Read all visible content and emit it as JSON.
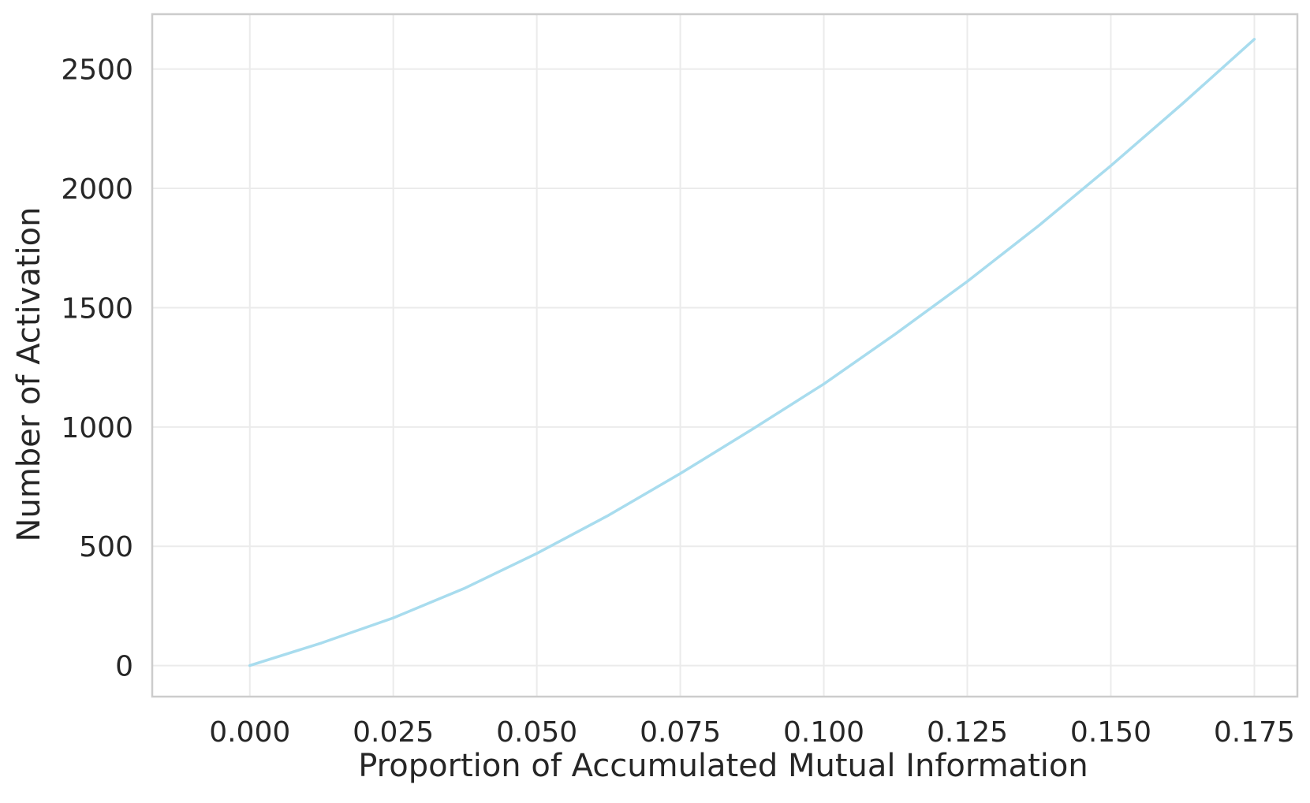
{
  "chart_data": {
    "type": "line",
    "title": "",
    "xlabel": "Proportion of Accumulated Mutual Information",
    "ylabel": "Number of Activation",
    "xlim": [
      -0.017,
      0.1825
    ],
    "ylim": [
      -130,
      2730
    ],
    "x_ticks": [
      0.0,
      0.025,
      0.05,
      0.075,
      0.1,
      0.125,
      0.15,
      0.175
    ],
    "x_tick_labels": [
      "0.000",
      "0.025",
      "0.050",
      "0.075",
      "0.100",
      "0.125",
      "0.150",
      "0.175"
    ],
    "y_ticks": [
      0,
      500,
      1000,
      1500,
      2000,
      2500
    ],
    "y_tick_labels": [
      "0",
      "500",
      "1000",
      "1500",
      "2000",
      "2500"
    ],
    "grid": true,
    "legend": "none",
    "series": [
      {
        "color": "#a8dcee",
        "x": [
          0.0,
          0.0125,
          0.025,
          0.0375,
          0.05,
          0.0625,
          0.075,
          0.0875,
          0.1,
          0.1125,
          0.125,
          0.1375,
          0.15,
          0.1625,
          0.175
        ],
        "y": [
          0,
          95,
          200,
          325,
          470,
          630,
          805,
          990,
          1180,
          1390,
          1610,
          1845,
          2095,
          2355,
          2625
        ]
      }
    ]
  },
  "colors": {
    "background": "#ffffff",
    "grid": "#ebebeb",
    "frame": "#cccccc",
    "text": "#262626",
    "line": "#a8dcee"
  }
}
